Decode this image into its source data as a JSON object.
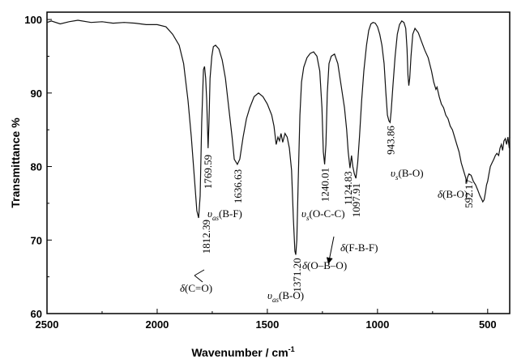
{
  "chart_data": {
    "type": "line",
    "xlabel": "Wavenumber / cm",
    "xlabel_sup": "-1",
    "ylabel": "Transmittance %",
    "xlim": [
      2500,
      400
    ],
    "ylim": [
      60,
      101
    ],
    "x_ticks": [
      2500,
      2000,
      1500,
      1000,
      500
    ],
    "y_ticks": [
      60,
      70,
      80,
      90,
      100
    ],
    "x_tick_labels": [
      "2500",
      "2000",
      "1500",
      "1000",
      "500"
    ],
    "y_tick_labels": [
      "60",
      "70",
      "80",
      "90",
      "100"
    ],
    "grid": false,
    "series": [
      {
        "points": [
          [
            2500,
            99.6
          ],
          [
            2480,
            99.8
          ],
          [
            2440,
            99.4
          ],
          [
            2400,
            99.7
          ],
          [
            2360,
            99.9
          ],
          [
            2300,
            99.6
          ],
          [
            2250,
            99.7
          ],
          [
            2200,
            99.5
          ],
          [
            2150,
            99.6
          ],
          [
            2100,
            99.5
          ],
          [
            2050,
            99.3
          ],
          [
            2000,
            99.3
          ],
          [
            1960,
            99.0
          ],
          [
            1930,
            98.0
          ],
          [
            1900,
            96.5
          ],
          [
            1880,
            94.0
          ],
          [
            1860,
            89.0
          ],
          [
            1845,
            84.0
          ],
          [
            1830,
            78.0
          ],
          [
            1820,
            74.0
          ],
          [
            1812,
            73.0
          ],
          [
            1805,
            76.0
          ],
          [
            1798,
            86.0
          ],
          [
            1790,
            93.2
          ],
          [
            1785,
            93.6
          ],
          [
            1780,
            92.0
          ],
          [
            1775,
            89.0
          ],
          [
            1769,
            82.5
          ],
          [
            1765,
            86.0
          ],
          [
            1760,
            92.0
          ],
          [
            1752,
            95.0
          ],
          [
            1745,
            96.3
          ],
          [
            1735,
            96.5
          ],
          [
            1720,
            96.0
          ],
          [
            1705,
            94.5
          ],
          [
            1690,
            92.0
          ],
          [
            1675,
            88.0
          ],
          [
            1660,
            84.0
          ],
          [
            1650,
            81.0
          ],
          [
            1636,
            80.3
          ],
          [
            1625,
            81.0
          ],
          [
            1610,
            84.0
          ],
          [
            1595,
            86.5
          ],
          [
            1580,
            88.0
          ],
          [
            1560,
            89.5
          ],
          [
            1540,
            90.0
          ],
          [
            1520,
            89.5
          ],
          [
            1500,
            88.5
          ],
          [
            1480,
            87.0
          ],
          [
            1470,
            85.5
          ],
          [
            1460,
            83.0
          ],
          [
            1452,
            84.0
          ],
          [
            1445,
            83.5
          ],
          [
            1438,
            84.5
          ],
          [
            1430,
            83.3
          ],
          [
            1420,
            84.5
          ],
          [
            1410,
            84.0
          ],
          [
            1400,
            82.5
          ],
          [
            1390,
            79.5
          ],
          [
            1382,
            73.0
          ],
          [
            1375,
            68.5
          ],
          [
            1371,
            68.0
          ],
          [
            1366,
            70.0
          ],
          [
            1360,
            78.0
          ],
          [
            1352,
            87.0
          ],
          [
            1345,
            91.5
          ],
          [
            1335,
            93.5
          ],
          [
            1320,
            94.8
          ],
          [
            1305,
            95.4
          ],
          [
            1290,
            95.6
          ],
          [
            1275,
            95.0
          ],
          [
            1262,
            93.0
          ],
          [
            1252,
            88.0
          ],
          [
            1246,
            82.0
          ],
          [
            1240,
            80.3
          ],
          [
            1234,
            83.0
          ],
          [
            1228,
            90.0
          ],
          [
            1220,
            94.0
          ],
          [
            1210,
            95.0
          ],
          [
            1195,
            95.3
          ],
          [
            1180,
            94.0
          ],
          [
            1165,
            91.0
          ],
          [
            1150,
            88.0
          ],
          [
            1140,
            85.0
          ],
          [
            1133,
            82.0
          ],
          [
            1125,
            79.8
          ],
          [
            1118,
            81.5
          ],
          [
            1112,
            80.0
          ],
          [
            1105,
            79.0
          ],
          [
            1098,
            78.4
          ],
          [
            1090,
            80.5
          ],
          [
            1082,
            84.0
          ],
          [
            1072,
            89.0
          ],
          [
            1062,
            93.0
          ],
          [
            1050,
            96.5
          ],
          [
            1040,
            98.5
          ],
          [
            1030,
            99.4
          ],
          [
            1020,
            99.6
          ],
          [
            1010,
            99.5
          ],
          [
            1000,
            99.0
          ],
          [
            990,
            98.0
          ],
          [
            980,
            96.5
          ],
          [
            970,
            94.0
          ],
          [
            962,
            90.0
          ],
          [
            955,
            87.0
          ],
          [
            948,
            86.2
          ],
          [
            943,
            86.0
          ],
          [
            938,
            87.5
          ],
          [
            930,
            91.0
          ],
          [
            920,
            95.0
          ],
          [
            910,
            98.0
          ],
          [
            900,
            99.3
          ],
          [
            890,
            99.8
          ],
          [
            880,
            99.6
          ],
          [
            872,
            98.8
          ],
          [
            866,
            96.0
          ],
          [
            862,
            92.5
          ],
          [
            858,
            91.0
          ],
          [
            854,
            92.0
          ],
          [
            848,
            95.0
          ],
          [
            840,
            98.0
          ],
          [
            830,
            98.8
          ],
          [
            815,
            98.2
          ],
          [
            800,
            97.0
          ],
          [
            785,
            95.8
          ],
          [
            770,
            94.8
          ],
          [
            755,
            93.0
          ],
          [
            745,
            91.5
          ],
          [
            735,
            90.5
          ],
          [
            730,
            90.8
          ],
          [
            720,
            89.5
          ],
          [
            710,
            88.5
          ],
          [
            700,
            88.0
          ],
          [
            690,
            87.0
          ],
          [
            680,
            86.5
          ],
          [
            670,
            85.5
          ],
          [
            660,
            85.0
          ],
          [
            650,
            84.0
          ],
          [
            640,
            83.0
          ],
          [
            630,
            82.0
          ],
          [
            620,
            80.5
          ],
          [
            610,
            79.5
          ],
          [
            600,
            78.5
          ],
          [
            595,
            77.8
          ],
          [
            592,
            78.5
          ],
          [
            585,
            79.0
          ],
          [
            575,
            78.8
          ],
          [
            565,
            78.0
          ],
          [
            555,
            77.5
          ],
          [
            545,
            76.8
          ],
          [
            535,
            76.0
          ],
          [
            528,
            75.6
          ],
          [
            522,
            75.2
          ],
          [
            516,
            75.5
          ],
          [
            510,
            76.5
          ],
          [
            505,
            77.5
          ],
          [
            500,
            78.0
          ],
          [
            494,
            79.0
          ],
          [
            488,
            80.0
          ],
          [
            480,
            80.5
          ],
          [
            472,
            81.0
          ],
          [
            465,
            81.5
          ],
          [
            458,
            81.8
          ],
          [
            450,
            81.5
          ],
          [
            444,
            82.5
          ],
          [
            438,
            83.0
          ],
          [
            432,
            82.2
          ],
          [
            426,
            83.5
          ],
          [
            420,
            83.8
          ],
          [
            414,
            83.0
          ],
          [
            408,
            84.0
          ],
          [
            402,
            82.5
          ],
          [
            400,
            84.0
          ]
        ]
      }
    ],
    "annotations": [
      {
        "id": "ann-1812",
        "text": "1812.39",
        "x": 1812,
        "y": 73.0
      },
      {
        "id": "ann-1769",
        "text": "1769.59",
        "x": 1769,
        "y": 82.5
      },
      {
        "id": "ann-1636",
        "text": "1636.63",
        "x": 1636,
        "y": 80.3
      },
      {
        "id": "ann-1371",
        "text": "1371.20",
        "x": 1371,
        "y": 68.0
      },
      {
        "id": "ann-1240",
        "text": "1240.01",
        "x": 1240,
        "y": 80.3
      },
      {
        "id": "ann-1124",
        "text": "1124.83",
        "x": 1125,
        "y": 79.8
      },
      {
        "id": "ann-1097",
        "text": "1097.91",
        "x": 1098,
        "y": 78.4
      },
      {
        "id": "ann-943",
        "text": "943.86",
        "x": 943,
        "y": 86.0
      },
      {
        "id": "ann-592",
        "text": "592.17",
        "x": 592,
        "y": 78.5
      }
    ],
    "assignments": {
      "c_o": {
        "symbol": "δ",
        "label": "(C=O)"
      },
      "b_f": {
        "symbol": "υ",
        "sub": "as",
        "label": "(B-F)"
      },
      "b_o_as": {
        "symbol": "υ",
        "sub": "as",
        "label": "(B-O)"
      },
      "o_c_c": {
        "symbol": "υ",
        "sub": "s",
        "label": "(O-C-C)"
      },
      "f_b_f": {
        "symbol": "δ",
        "label": "(F-B-F)"
      },
      "o_b_o": {
        "symbol": "δ",
        "label": "(O–B–O)"
      },
      "b_o_s": {
        "symbol": "υ",
        "sub": "s",
        "label": "(B-O)"
      },
      "b_o_d": {
        "symbol": "δ",
        "label": "(B-O)"
      }
    },
    "style": {
      "line_color": "#111111",
      "axis_color": "#000000",
      "background": "#ffffff"
    }
  }
}
